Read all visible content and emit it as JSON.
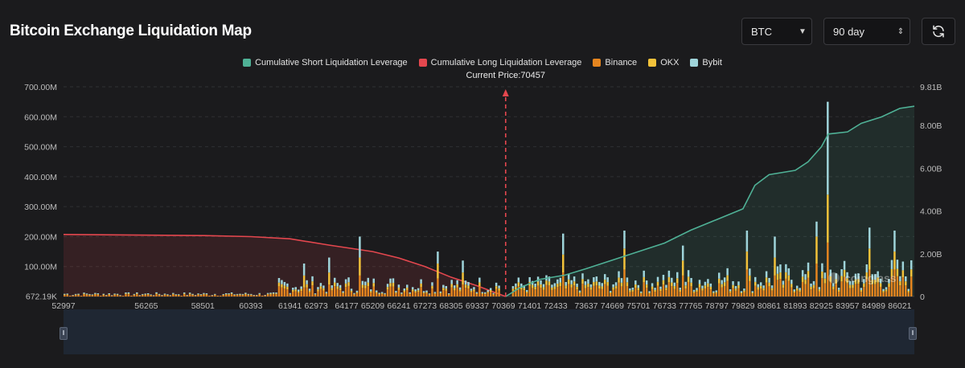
{
  "header": {
    "title": "Bitcoin Exchange Liquidation Map",
    "symbol_select": "BTC",
    "range_select": "90 day"
  },
  "colors": {
    "short_cum": "#4fb196",
    "long_cum": "#e4474e",
    "binance": "#e5851f",
    "okx": "#f2c23a",
    "bybit": "#9fd4da",
    "grid": "#2f3033",
    "axis_text": "#bdbdbd",
    "background": "#1b1b1d"
  },
  "icons": {
    "symbol_caret": "caret-down-icon",
    "range_caret": "up-down-icon",
    "refresh": "refresh-icon"
  },
  "legend": [
    {
      "key": "short_cum",
      "label": "Cumulative Short Liquidation Leverage"
    },
    {
      "key": "long_cum",
      "label": "Cumulative Long Liquidation Leverage"
    },
    {
      "key": "binance",
      "label": "Binance"
    },
    {
      "key": "okx",
      "label": "OKX"
    },
    {
      "key": "bybit",
      "label": "Bybit"
    }
  ],
  "watermark": "coinglass",
  "chart_data": {
    "type": "bar",
    "current_price": 70457,
    "current_price_label": "Current Price:70457",
    "x_range": [
      52997,
      86597
    ],
    "x_ticks": [
      52997,
      56265,
      58501,
      60393,
      61941,
      62973,
      64177,
      65209,
      66241,
      67273,
      68305,
      69337,
      70369,
      71401,
      72433,
      73637,
      74669,
      75701,
      76733,
      77765,
      78797,
      79829,
      80861,
      81893,
      82925,
      83957,
      84989,
      86021
    ],
    "y_left": {
      "ticks": [
        "672.19K",
        "100.00M",
        "200.00M",
        "300.00M",
        "400.00M",
        "500.00M",
        "600.00M",
        "700.00M"
      ],
      "range": [
        0,
        700000000
      ]
    },
    "y_right": {
      "ticks": [
        "0",
        "2.00B",
        "4.00B",
        "6.00B",
        "8.00B",
        "9.81B"
      ],
      "range": [
        0,
        9810000000
      ]
    },
    "grid": true,
    "stacked_series": [
      "Binance",
      "OKX",
      "Bybit"
    ],
    "spikes": [
      {
        "x": 62500,
        "binance": 30,
        "okx": 40,
        "bybit": 40
      },
      {
        "x": 63500,
        "binance": 40,
        "okx": 40,
        "bybit": 50
      },
      {
        "x": 64700,
        "binance": 70,
        "okx": 60,
        "bybit": 70
      },
      {
        "x": 67700,
        "binance": 60,
        "okx": 50,
        "bybit": 40
      },
      {
        "x": 68700,
        "binance": 40,
        "okx": 40,
        "bybit": 40
      },
      {
        "x": 72700,
        "binance": 80,
        "okx": 60,
        "bybit": 70
      },
      {
        "x": 75100,
        "binance": 90,
        "okx": 70,
        "bybit": 60
      },
      {
        "x": 77400,
        "binance": 70,
        "okx": 50,
        "bybit": 50
      },
      {
        "x": 80000,
        "binance": 90,
        "okx": 60,
        "bybit": 70
      },
      {
        "x": 81000,
        "binance": 70,
        "okx": 60,
        "bybit": 70
      },
      {
        "x": 82700,
        "binance": 110,
        "okx": 90,
        "bybit": 50
      },
      {
        "x": 83100,
        "binance": 180,
        "okx": 160,
        "bybit": 310
      },
      {
        "x": 84800,
        "binance": 90,
        "okx": 70,
        "bybit": 70
      },
      {
        "x": 85800,
        "binance": 90,
        "okx": 60,
        "bybit": 70
      }
    ],
    "long_cumulative": [
      [
        52997,
        2.9
      ],
      [
        58501,
        2.85
      ],
      [
        60393,
        2.8
      ],
      [
        61941,
        2.7
      ],
      [
        63500,
        2.4
      ],
      [
        65209,
        2.1
      ],
      [
        66241,
        1.8
      ],
      [
        67273,
        1.4
      ],
      [
        68305,
        0.9
      ],
      [
        69337,
        0.5
      ],
      [
        70000,
        0.2
      ],
      [
        70457,
        0.0
      ]
    ],
    "short_cumulative": [
      [
        70457,
        0.0
      ],
      [
        71000,
        0.4
      ],
      [
        71800,
        0.8
      ],
      [
        72800,
        1.0
      ],
      [
        73637,
        1.3
      ],
      [
        74669,
        1.7
      ],
      [
        75701,
        2.1
      ],
      [
        76733,
        2.5
      ],
      [
        77765,
        3.1
      ],
      [
        78797,
        3.6
      ],
      [
        79829,
        4.1
      ],
      [
        80300,
        5.2
      ],
      [
        80861,
        5.7
      ],
      [
        81893,
        5.9
      ],
      [
        82400,
        6.3
      ],
      [
        82925,
        7.0
      ],
      [
        83200,
        7.6
      ],
      [
        83957,
        7.7
      ],
      [
        84500,
        8.1
      ],
      [
        85300,
        8.4
      ],
      [
        86021,
        8.8
      ],
      [
        86597,
        8.9
      ]
    ]
  }
}
